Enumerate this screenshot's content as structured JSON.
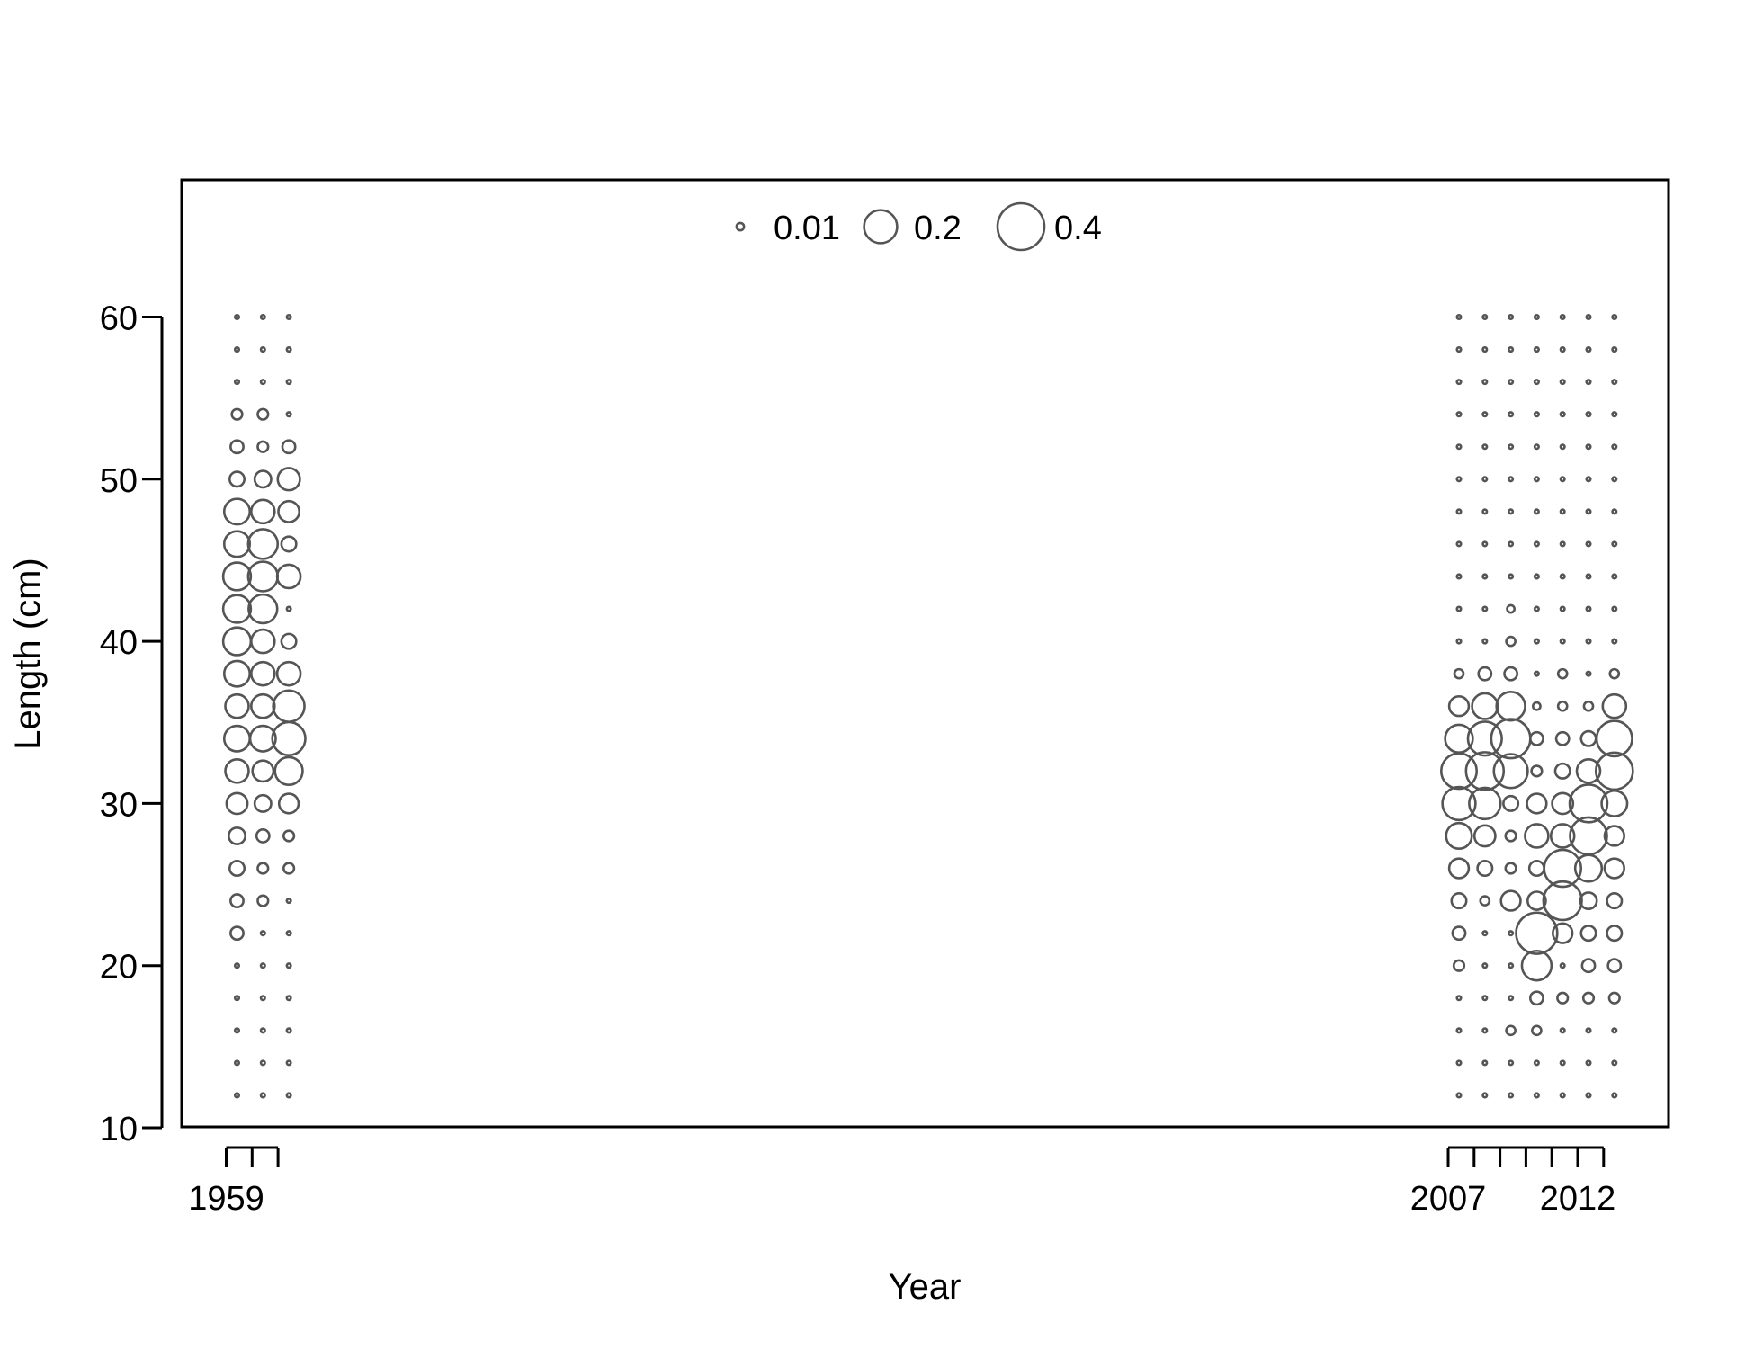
{
  "chart_data": {
    "type": "scatter",
    "subtype": "bubble",
    "xlabel": "Year",
    "ylabel": "Length (cm)",
    "x_tick_labels": [
      1959,
      2007,
      2012
    ],
    "x_tick_marks": [
      1959,
      1960,
      1961,
      2007,
      2008,
      2009,
      2010,
      2011,
      2012,
      2013
    ],
    "y_ticks": [
      10,
      20,
      30,
      40,
      50,
      60
    ],
    "ylim": [
      10,
      68
    ],
    "grid": false,
    "legend_position": "top-center",
    "legend": [
      {
        "label": "0.01",
        "value": 0.01
      },
      {
        "label": "0.2",
        "value": 0.2
      },
      {
        "label": "0.4",
        "value": 0.4
      }
    ],
    "lengths": [
      12,
      14,
      16,
      18,
      20,
      22,
      24,
      26,
      28,
      30,
      32,
      34,
      36,
      38,
      40,
      42,
      44,
      46,
      48,
      50,
      52,
      54,
      56,
      58,
      60
    ],
    "series": [
      {
        "year": 1959,
        "values": [
          0.003,
          0.003,
          0.003,
          0.003,
          0.003,
          0.03,
          0.03,
          0.04,
          0.05,
          0.08,
          0.1,
          0.12,
          0.1,
          0.12,
          0.14,
          0.14,
          0.14,
          0.12,
          0.12,
          0.04,
          0.03,
          0.02,
          0.003,
          0.003,
          0.003
        ]
      },
      {
        "year": 1960,
        "values": [
          0.003,
          0.003,
          0.003,
          0.003,
          0.003,
          0.003,
          0.02,
          0.02,
          0.03,
          0.05,
          0.08,
          0.12,
          0.1,
          0.1,
          0.1,
          0.15,
          0.16,
          0.16,
          0.1,
          0.05,
          0.02,
          0.02,
          0.003,
          0.003,
          0.003
        ]
      },
      {
        "year": 1961,
        "values": [
          0.003,
          0.003,
          0.003,
          0.003,
          0.003,
          0.003,
          0.003,
          0.02,
          0.02,
          0.07,
          0.14,
          0.2,
          0.18,
          0.1,
          0.04,
          0.003,
          0.1,
          0.04,
          0.08,
          0.09,
          0.03,
          0.003,
          0.003,
          0.003,
          0.003
        ]
      },
      {
        "year": 2007,
        "values": [
          0.003,
          0.003,
          0.003,
          0.003,
          0.02,
          0.03,
          0.04,
          0.07,
          0.12,
          0.2,
          0.23,
          0.14,
          0.07,
          0.015,
          0.003,
          0.003,
          0.003,
          0.003,
          0.003,
          0.003,
          0.003,
          0.003,
          0.003,
          0.003,
          0.003
        ]
      },
      {
        "year": 2008,
        "values": [
          0.003,
          0.003,
          0.003,
          0.003,
          0.003,
          0.003,
          0.015,
          0.04,
          0.08,
          0.18,
          0.26,
          0.21,
          0.12,
          0.03,
          0.003,
          0.003,
          0.003,
          0.003,
          0.003,
          0.003,
          0.003,
          0.003,
          0.003,
          0.003,
          0.003
        ]
      },
      {
        "year": 2009,
        "values": [
          0.003,
          0.003,
          0.015,
          0.003,
          0.003,
          0.003,
          0.07,
          0.02,
          0.02,
          0.04,
          0.21,
          0.28,
          0.15,
          0.03,
          0.015,
          0.01,
          0.003,
          0.003,
          0.003,
          0.003,
          0.003,
          0.003,
          0.003,
          0.003,
          0.003
        ]
      },
      {
        "year": 2010,
        "values": [
          0.003,
          0.003,
          0.015,
          0.03,
          0.16,
          0.31,
          0.06,
          0.04,
          0.1,
          0.07,
          0.02,
          0.03,
          0.01,
          0.003,
          0.003,
          0.003,
          0.003,
          0.003,
          0.003,
          0.003,
          0.003,
          0.003,
          0.003,
          0.003,
          0.003
        ]
      },
      {
        "year": 2011,
        "values": [
          0.003,
          0.003,
          0.003,
          0.02,
          0.003,
          0.07,
          0.27,
          0.25,
          0.1,
          0.08,
          0.04,
          0.03,
          0.015,
          0.015,
          0.003,
          0.003,
          0.003,
          0.003,
          0.003,
          0.003,
          0.003,
          0.003,
          0.003,
          0.003,
          0.003
        ]
      },
      {
        "year": 2012,
        "values": [
          0.003,
          0.003,
          0.003,
          0.02,
          0.03,
          0.04,
          0.05,
          0.13,
          0.25,
          0.26,
          0.1,
          0.04,
          0.015,
          0.003,
          0.003,
          0.003,
          0.003,
          0.003,
          0.003,
          0.003,
          0.003,
          0.003,
          0.003,
          0.003,
          0.003
        ]
      },
      {
        "year": 2013,
        "values": [
          0.003,
          0.003,
          0.003,
          0.02,
          0.03,
          0.04,
          0.04,
          0.07,
          0.07,
          0.12,
          0.25,
          0.23,
          0.1,
          0.015,
          0.003,
          0.003,
          0.003,
          0.003,
          0.003,
          0.003,
          0.003,
          0.003,
          0.003,
          0.003,
          0.003
        ]
      }
    ]
  }
}
